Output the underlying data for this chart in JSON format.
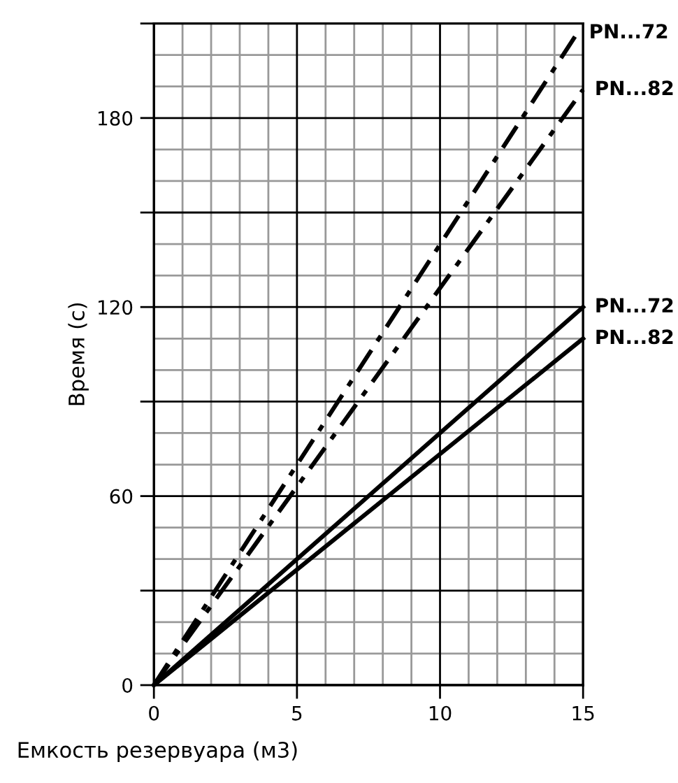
{
  "chart_data": {
    "type": "line",
    "xlabel": "Емкость резервуара (м3)",
    "ylabel": "Время (с)",
    "xlim": [
      0,
      15
    ],
    "ylim": [
      0,
      210
    ],
    "xticks": [
      0,
      5,
      10,
      15
    ],
    "yticks": [
      0,
      {
        "value": 30,
        "label": null
      },
      60,
      {
        "value": 90,
        "label": null
      },
      120,
      {
        "value": 150,
        "label": null
      },
      180,
      {
        "value": 210,
        "label": null
      }
    ],
    "grid": true,
    "legend": false,
    "marker": "none",
    "series": [
      {
        "name": "PN...72",
        "color": "#000000",
        "line_style": "dashed",
        "x": [
          0,
          14.8
        ],
        "values": [
          0,
          207
        ]
      },
      {
        "name": "PN...82",
        "color": "#000000",
        "line_style": "dashed",
        "x": [
          0,
          15
        ],
        "values": [
          0,
          189
        ]
      },
      {
        "name": "PN...72",
        "color": "#000000",
        "line_style": "solid",
        "x": [
          0,
          15
        ],
        "values": [
          0,
          120
        ]
      },
      {
        "name": "PN...82",
        "color": "#000000",
        "line_style": "solid",
        "x": [
          0,
          15
        ],
        "values": [
          0,
          110
        ]
      }
    ]
  }
}
